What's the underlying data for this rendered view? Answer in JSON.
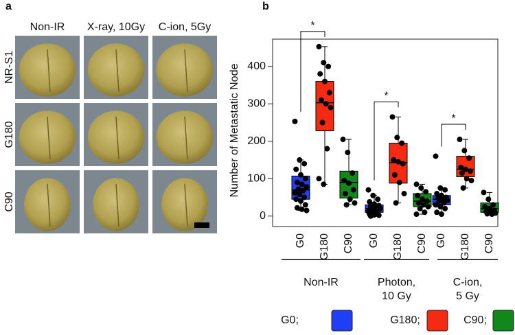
{
  "panel_a": {
    "label": "a",
    "columns": [
      "Non-IR",
      "X-ray, 10Gy",
      "C-ion, 5Gy"
    ],
    "rows": [
      "NR-S1",
      "G180",
      "C90"
    ]
  },
  "chart_data": {
    "type": "box",
    "panel_label": "b",
    "ylabel": "Number of Metastatic Node",
    "ylim": [
      -28,
      473
    ],
    "yticks": [
      0,
      100,
      200,
      300,
      400
    ],
    "legend": [
      {
        "name": "G0;",
        "color": "#1f3ff5"
      },
      {
        "name": "G180;",
        "color": "#f52a12"
      },
      {
        "name": "C90;",
        "color": "#10881a"
      }
    ],
    "groups": [
      {
        "name": [
          "Non-IR"
        ],
        "boxes": [
          {
            "category": "G0",
            "whislo": 15,
            "q1": 45,
            "med": 70,
            "q3": 107,
            "whishi": 150,
            "points": [
              253,
              150,
              140,
              125,
              110,
              100,
              90,
              85,
              78,
              72,
              68,
              62,
              58,
              50,
              45,
              40,
              30,
              22,
              18,
              15
            ]
          },
          {
            "category": "G180",
            "whislo": 85,
            "q1": 228,
            "med": 303,
            "q3": 360,
            "whishi": 453,
            "points": [
              453,
              410,
              400,
              380,
              360,
              330,
              310,
              300,
              290,
              250,
              180,
              100,
              85
            ]
          },
          {
            "category": "C90",
            "whislo": 30,
            "q1": 48,
            "med": 90,
            "q3": 120,
            "whishi": 205,
            "points": [
              205,
              170,
              115,
              95,
              88,
              70,
              60,
              45,
              35,
              30
            ]
          }
        ]
      },
      {
        "name": [
          "Photon,",
          "10 Gy"
        ],
        "boxes": [
          {
            "category": "G0",
            "whislo": 0,
            "q1": 10,
            "med": 20,
            "q3": 30,
            "whishi": 55,
            "points": [
              70,
              55,
              45,
              38,
              32,
              28,
              25,
              22,
              20,
              18,
              15,
              12,
              10,
              8,
              5,
              3,
              2,
              0
            ]
          },
          {
            "category": "G180",
            "whislo": 35,
            "q1": 88,
            "med": 143,
            "q3": 195,
            "whishi": 265,
            "points": [
              265,
              210,
              195,
              150,
              145,
              140,
              110,
              90,
              60,
              35
            ]
          },
          {
            "category": "C90",
            "whislo": 5,
            "q1": 25,
            "med": 40,
            "q3": 60,
            "whishi": 85,
            "points": [
              85,
              75,
              65,
              55,
              45,
              40,
              35,
              30,
              25,
              20,
              10,
              5
            ]
          }
        ]
      },
      {
        "name": [
          "C-ion,",
          "5 Gy"
        ],
        "boxes": [
          {
            "category": "G0",
            "whislo": 5,
            "q1": 30,
            "med": 45,
            "q3": 55,
            "whishi": 75,
            "points": [
              160,
              75,
              70,
              60,
              55,
              50,
              48,
              45,
              42,
              40,
              35,
              30,
              25,
              20,
              10,
              5
            ]
          },
          {
            "category": "G180",
            "whislo": 75,
            "q1": 105,
            "med": 125,
            "q3": 160,
            "whishi": 205,
            "points": [
              205,
              175,
              155,
              130,
              125,
              120,
              115,
              100,
              95,
              75
            ]
          },
          {
            "category": "C90",
            "whislo": 5,
            "q1": 10,
            "med": 20,
            "q3": 35,
            "whishi": 63,
            "points": [
              63,
              45,
              30,
              25,
              20,
              15,
              12,
              10,
              8,
              6,
              5
            ]
          }
        ]
      }
    ],
    "significance": [
      {
        "label": "*",
        "group": 0,
        "boxes": [
          0,
          1
        ]
      },
      {
        "label": "*",
        "group": 1,
        "boxes": [
          0,
          1
        ]
      },
      {
        "label": "*",
        "group": 2,
        "boxes": [
          0,
          1
        ]
      }
    ]
  }
}
